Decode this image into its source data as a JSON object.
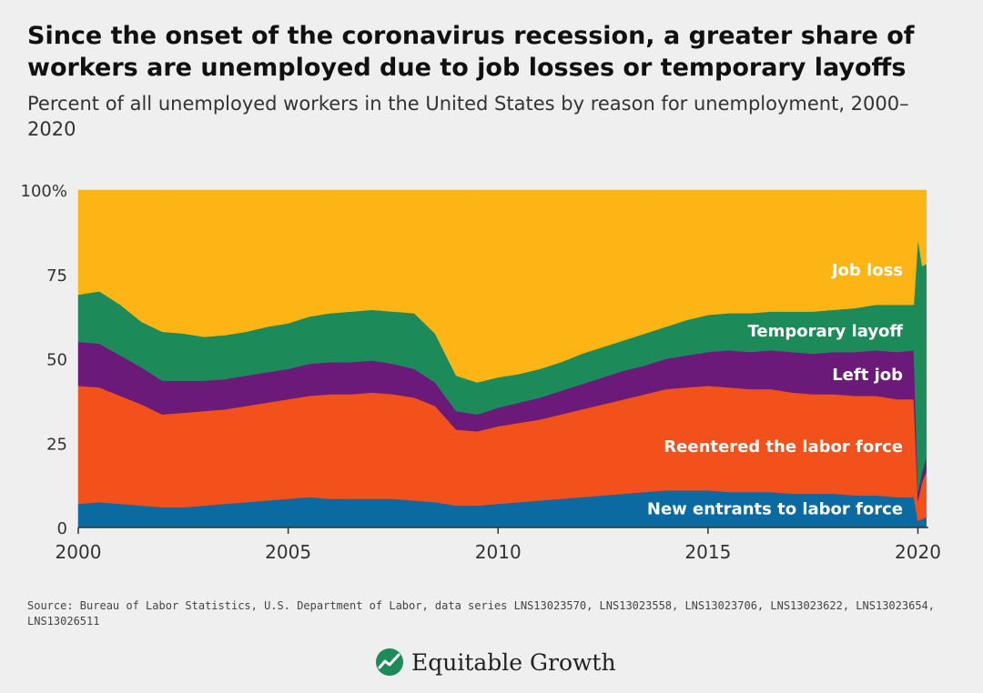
{
  "title": "Since the onset of the coronavirus recession, a greater share of workers are unemployed due to job losses or temporary layoffs",
  "subtitle": "Percent of all unemployed workers in the United States by reason for unemployment, 2000–2020",
  "source": "Source: Bureau of Labor Statistics, U.S. Department of Labor, data series LNS13023570, LNS13023558, LNS13023706, LNS13023622, LNS13023654, LNS13026511",
  "logo_text": "Equitable Growth",
  "colors": {
    "background": "#efefef",
    "new_entrants": "#0a6aa1",
    "reentered": "#f2511b",
    "left_job": "#6b1a7a",
    "temporary_layoff": "#1d8a5a",
    "job_loss": "#fdb515",
    "text": "#222222"
  },
  "chart_data": {
    "type": "area",
    "stacked": true,
    "x_unit": "year",
    "y_unit": "percent",
    "xlim": [
      2000,
      2020.25
    ],
    "ylim": [
      0,
      100
    ],
    "x_ticks": [
      2000,
      2005,
      2010,
      2015,
      2020
    ],
    "x_tick_labels": [
      "2000",
      "2005",
      "2010",
      "2015",
      "2020"
    ],
    "y_ticks": [
      0,
      25,
      50,
      75,
      100
    ],
    "y_tick_labels": [
      "0",
      "25",
      "50",
      "75",
      "100%"
    ],
    "grid": false,
    "legend": "direct labels on areas",
    "x": [
      2000.0,
      2000.5,
      2001.0,
      2001.5,
      2002.0,
      2002.5,
      2003.0,
      2003.5,
      2004.0,
      2004.5,
      2005.0,
      2005.5,
      2006.0,
      2006.5,
      2007.0,
      2007.5,
      2008.0,
      2008.5,
      2009.0,
      2009.5,
      2010.0,
      2010.5,
      2011.0,
      2011.5,
      2012.0,
      2012.5,
      2013.0,
      2013.5,
      2014.0,
      2014.5,
      2015.0,
      2015.5,
      2016.0,
      2016.5,
      2017.0,
      2017.5,
      2018.0,
      2018.5,
      2019.0,
      2019.5,
      2019.9,
      2020.0,
      2020.1,
      2020.2
    ],
    "series": [
      {
        "name": "New entrants to labor force",
        "color_key": "new_entrants",
        "values": [
          7,
          7.5,
          7,
          6.5,
          6,
          6,
          6.5,
          7,
          7.5,
          8,
          8.5,
          9,
          8.5,
          8.5,
          8.5,
          8.5,
          8,
          7.5,
          6.5,
          6.5,
          7,
          7.5,
          8,
          8.5,
          9,
          9.5,
          10,
          10.5,
          11,
          11,
          11,
          10.5,
          10.5,
          10.5,
          10,
          10,
          10,
          9.5,
          9.5,
          9,
          9,
          2,
          2.5,
          3
        ]
      },
      {
        "name": "Reentered the labor force",
        "color_key": "reentered",
        "values": [
          35,
          34,
          32,
          30,
          27.5,
          28,
          28,
          28,
          28.5,
          29,
          29.5,
          30,
          31,
          31,
          31.5,
          31,
          30.5,
          28.5,
          22.5,
          22,
          23,
          23.5,
          24,
          25,
          26,
          27,
          28,
          29,
          30,
          30.5,
          31,
          31,
          30.5,
          30.5,
          30,
          29.5,
          29.5,
          29.5,
          29.5,
          29,
          29,
          6,
          11,
          13.5
        ]
      },
      {
        "name": "Left job",
        "color_key": "left_job",
        "values": [
          13,
          13,
          12,
          11,
          10,
          9.5,
          9,
          9,
          9,
          9,
          9,
          9.5,
          9.5,
          9.5,
          9.5,
          9,
          8.5,
          7,
          5.5,
          5,
          5.5,
          6,
          6.5,
          7,
          7.5,
          8,
          8.5,
          8.5,
          9,
          9.5,
          10,
          11,
          11,
          11.5,
          12,
          12,
          12.5,
          13,
          13.5,
          14,
          14.5,
          2.5,
          3,
          4
        ]
      },
      {
        "name": "Temporary layoff",
        "color_key": "temporary_layoff",
        "values": [
          14,
          15.5,
          15,
          13.5,
          14.5,
          14,
          13,
          13,
          13,
          13.5,
          13.5,
          14,
          14.5,
          15,
          15,
          15.5,
          16.5,
          14.5,
          10.5,
          9.5,
          9,
          8.5,
          8.5,
          8.5,
          9,
          9,
          9,
          9.5,
          9.5,
          10.5,
          11,
          11,
          11.5,
          11.5,
          12,
          12.5,
          12.5,
          13,
          13.5,
          14,
          13.5,
          75,
          61,
          57.5
        ]
      },
      {
        "name": "Job loss",
        "color_key": "job_loss",
        "values": [
          31,
          30,
          34,
          39,
          42,
          42.5,
          43.5,
          43,
          42,
          40.5,
          39.5,
          37.5,
          36.5,
          36,
          35.5,
          36,
          36.5,
          42.5,
          55,
          57,
          55.5,
          54.5,
          53,
          51,
          48.5,
          46.5,
          44.5,
          42.5,
          40.5,
          38.5,
          37,
          36.5,
          36.5,
          36,
          36,
          36,
          35.5,
          35,
          34,
          34,
          34,
          14.5,
          22.5,
          22
        ]
      }
    ]
  }
}
